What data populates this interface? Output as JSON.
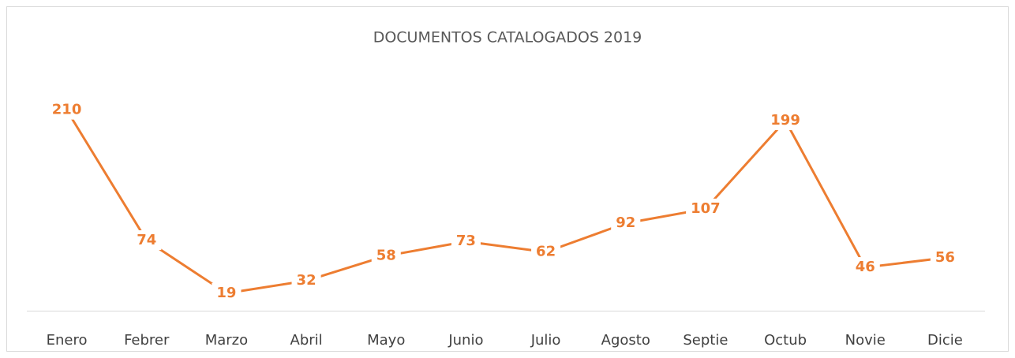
{
  "chart_data": {
    "type": "line",
    "title": "DOCUMENTOS CATALOGADOS 2019",
    "categories": [
      "Enero",
      "Febrer",
      "Marzo",
      "Abril",
      "Mayo",
      "Junio",
      "Julio",
      "Agosto",
      "Septie",
      "Octub",
      "Novie",
      "Dicie"
    ],
    "values": [
      210,
      74,
      19,
      32,
      58,
      73,
      62,
      92,
      107,
      199,
      46,
      56
    ],
    "color": "#ED7D31",
    "ylim": [
      0,
      250
    ],
    "grid": false
  }
}
